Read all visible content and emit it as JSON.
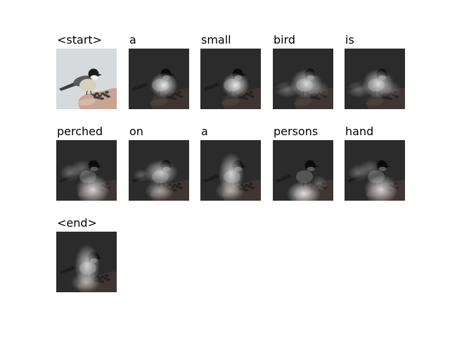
{
  "figure": {
    "caption_tokens": [
      {
        "word": "<start>",
        "kind": "original"
      },
      {
        "word": "a",
        "kind": "attention",
        "focus": "bird-body"
      },
      {
        "word": "small",
        "kind": "attention",
        "focus": "bird-body"
      },
      {
        "word": "bird",
        "kind": "attention",
        "focus": "bird-diffuse"
      },
      {
        "word": "is",
        "kind": "attention",
        "focus": "bird-diffuse"
      },
      {
        "word": "perched",
        "kind": "attention",
        "focus": "hand-lower"
      },
      {
        "word": "on",
        "kind": "attention",
        "focus": "bird-and-hand"
      },
      {
        "word": "a",
        "kind": "attention",
        "focus": "center-vertical"
      },
      {
        "word": "persons",
        "kind": "attention",
        "focus": "hand-bottom"
      },
      {
        "word": "hand",
        "kind": "attention",
        "focus": "hand-lower"
      },
      {
        "word": "<end>",
        "kind": "attention",
        "focus": "center-vertical"
      }
    ],
    "colors": {
      "background": "#ffffff",
      "photo_sky": "#d6dadd",
      "attention_dark": "#2b2b2b",
      "attention_bright": "#f0f0f0"
    }
  }
}
